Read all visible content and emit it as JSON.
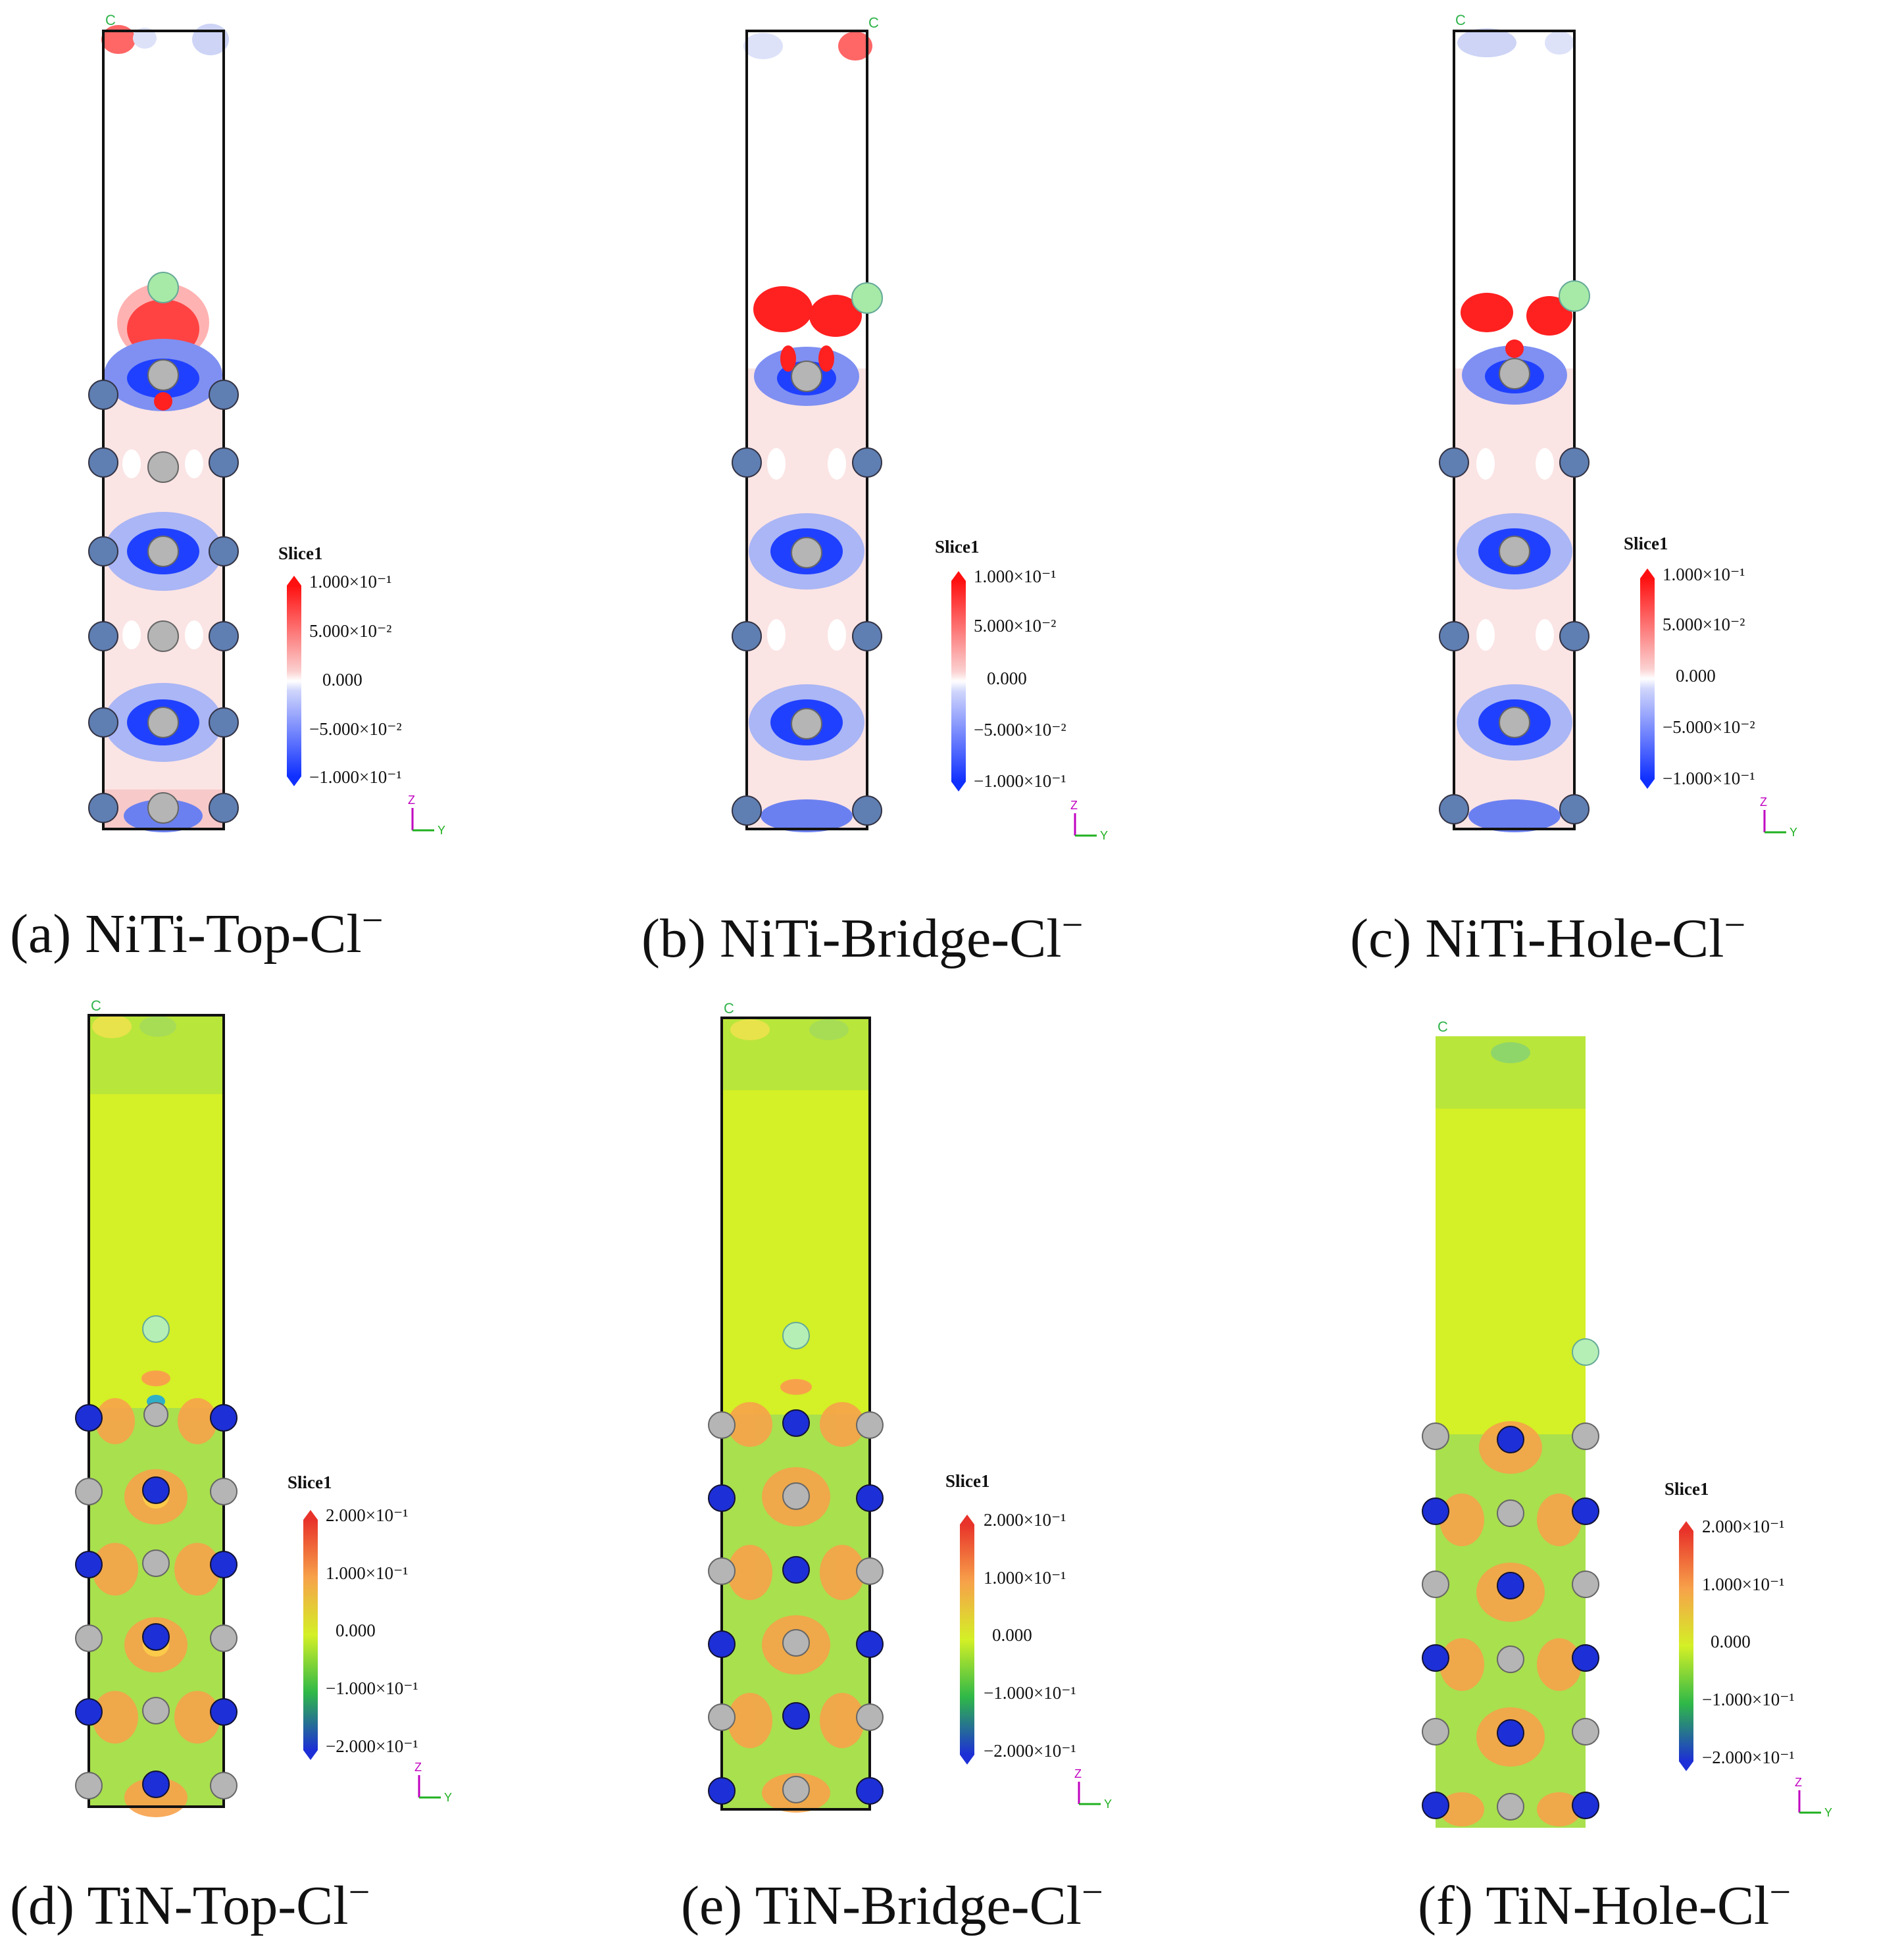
{
  "panels": [
    {
      "id": "a",
      "caption_prefix": "(a)",
      "caption_main": "NiTi-Top-Cl",
      "caption_sup": "−",
      "scheme": "redblue",
      "legend_title": "Slice1",
      "ticks": [
        "1.000×10⁻¹",
        "5.000×10⁻²",
        "0.000",
        "−5.000×10⁻²",
        "−1.000×10⁻¹"
      ],
      "corner_label": "C",
      "axis_z": "Z",
      "axis_y": "Y"
    },
    {
      "id": "b",
      "caption_prefix": "(b)",
      "caption_main": "NiTi-Bridge-Cl",
      "caption_sup": "−",
      "scheme": "redblue",
      "legend_title": "Slice1",
      "ticks": [
        "1.000×10⁻¹",
        "5.000×10⁻²",
        "0.000",
        "−5.000×10⁻²",
        "−1.000×10⁻¹"
      ],
      "corner_label": "C",
      "axis_z": "Z",
      "axis_y": "Y"
    },
    {
      "id": "c",
      "caption_prefix": "(c)",
      "caption_main": "NiTi-Hole-Cl",
      "caption_sup": "−",
      "scheme": "redblue",
      "legend_title": "Slice1",
      "ticks": [
        "1.000×10⁻¹",
        "5.000×10⁻²",
        "0.000",
        "−5.000×10⁻²",
        "−1.000×10⁻¹"
      ],
      "corner_label": "C",
      "axis_z": "Z",
      "axis_y": "Y"
    },
    {
      "id": "d",
      "caption_prefix": "(d)",
      "caption_main": "TiN-Top-Cl",
      "caption_sup": "−",
      "scheme": "rainbow",
      "legend_title": "Slice1",
      "ticks": [
        "2.000×10⁻¹",
        "1.000×10⁻¹",
        "0.000",
        "−1.000×10⁻¹",
        "−2.000×10⁻¹"
      ],
      "corner_label": "C",
      "axis_z": "Z",
      "axis_y": "Y"
    },
    {
      "id": "e",
      "caption_prefix": "(e)",
      "caption_main": "TiN-Bridge-Cl",
      "caption_sup": "−",
      "scheme": "rainbow",
      "legend_title": "Slice1",
      "ticks": [
        "2.000×10⁻¹",
        "1.000×10⁻¹",
        "0.000",
        "−1.000×10⁻¹",
        "−2.000×10⁻¹"
      ],
      "corner_label": "C",
      "axis_z": "Z",
      "axis_y": "Y"
    },
    {
      "id": "f",
      "caption_prefix": "(f)",
      "caption_main": "TiN-Hole-Cl",
      "caption_sup": "−",
      "scheme": "rainbow",
      "legend_title": "Slice1",
      "ticks": [
        "2.000×10⁻¹",
        "1.000×10⁻¹",
        "0.000",
        "−1.000×10⁻¹",
        "−2.000×10⁻¹"
      ],
      "corner_label": "C",
      "axis_z": "Z",
      "axis_y": "Y"
    }
  ],
  "colors": {
    "chlorine": "#9ee89e",
    "nickel_blue": "#5f7fb3",
    "titanium_grey": "#a8a8a8",
    "nitrogen_blue": "#1d2fd6",
    "positive_red": "#ff2020",
    "negative_blue": "#2040ff",
    "tin_background": "#d4f026"
  }
}
